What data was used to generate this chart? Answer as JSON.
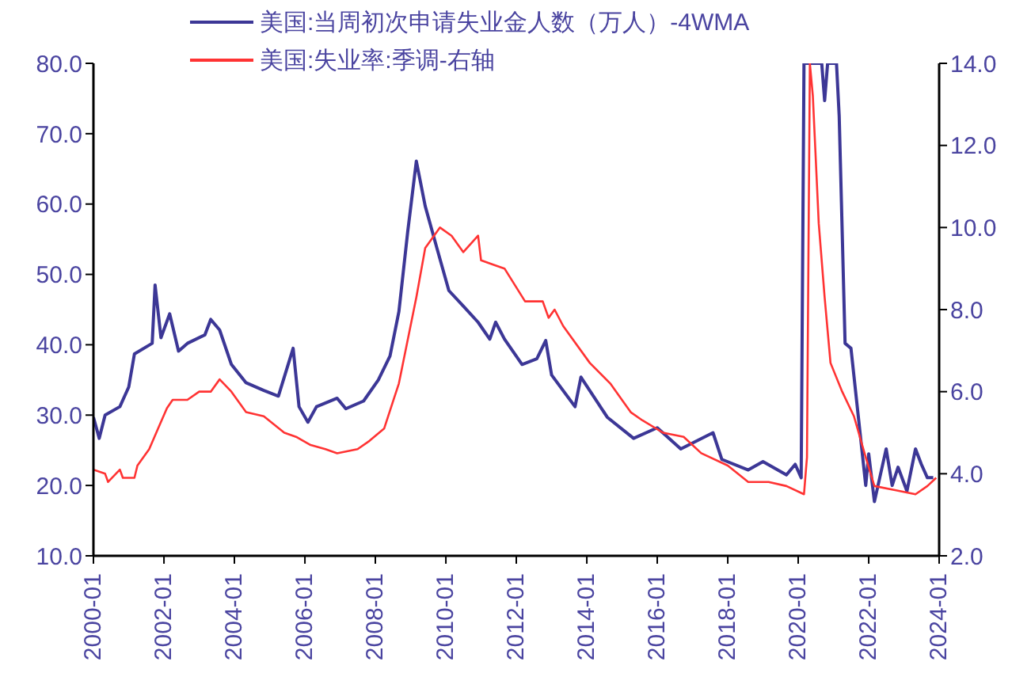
{
  "chart_data": {
    "type": "line",
    "legend": "top",
    "grid": false,
    "marker": "none",
    "line_style": "solid",
    "xlim": [
      "2000-01",
      "2024-01"
    ],
    "xticks": [
      {
        "value": "2000-01",
        "label": "2000-01"
      },
      {
        "value": "2002-01",
        "label": "2002-01"
      },
      {
        "value": "2004-01",
        "label": "2004-01"
      },
      {
        "value": "2006-01",
        "label": "2006-01"
      },
      {
        "value": "2008-01",
        "label": "2008-01"
      },
      {
        "value": "2010-01",
        "label": "2010-01"
      },
      {
        "value": "2012-01",
        "label": "2012-01"
      },
      {
        "value": "2014-01",
        "label": "2014-01"
      },
      {
        "value": "2016-01",
        "label": "2016-01"
      },
      {
        "value": "2018-01",
        "label": "2018-01"
      },
      {
        "value": "2020-01",
        "label": "2020-01"
      },
      {
        "value": "2022-01",
        "label": "2022-01"
      },
      {
        "value": "2024-01",
        "label": "2024-01"
      }
    ],
    "ylim": [
      10,
      80
    ],
    "yticks": [
      {
        "value": 10,
        "label": "10.0"
      },
      {
        "value": 20,
        "label": "20.0"
      },
      {
        "value": 30,
        "label": "30.0"
      },
      {
        "value": 40,
        "label": "40.0"
      },
      {
        "value": 50,
        "label": "50.0"
      },
      {
        "value": 60,
        "label": "60.0"
      },
      {
        "value": 70,
        "label": "70.0"
      },
      {
        "value": 80,
        "label": "80.0"
      }
    ],
    "y2lim": [
      2,
      14
    ],
    "y2ticks": [
      {
        "value": 2,
        "label": "2.0"
      },
      {
        "value": 4,
        "label": "4.0"
      },
      {
        "value": 6,
        "label": "6.0"
      },
      {
        "value": 8,
        "label": "8.0"
      },
      {
        "value": 10,
        "label": "10.0"
      },
      {
        "value": 12,
        "label": "12.0"
      },
      {
        "value": 14,
        "label": "14.0"
      }
    ],
    "series": [
      {
        "name": "美国:当周初次申请失业金人数（万人）-4WMA",
        "color": "#3c3796",
        "x": [
          "2000-01",
          "2000-03",
          "2000-05",
          "2000-10",
          "2001-01",
          "2001-03",
          "2001-09",
          "2001-10",
          "2001-12",
          "2002-03",
          "2002-06",
          "2002-09",
          "2003-03",
          "2003-05",
          "2003-08",
          "2003-12",
          "2004-05",
          "2004-11",
          "2005-04",
          "2005-09",
          "2005-11",
          "2006-02",
          "2006-05",
          "2006-12",
          "2007-03",
          "2007-09",
          "2008-02",
          "2008-06",
          "2008-09",
          "2008-12",
          "2009-03",
          "2009-06",
          "2009-10",
          "2010-02",
          "2010-07",
          "2010-12",
          "2011-04",
          "2011-06",
          "2011-09",
          "2012-03",
          "2012-08",
          "2012-11",
          "2013-01",
          "2013-09",
          "2013-11",
          "2014-08",
          "2015-05",
          "2016-01",
          "2016-09",
          "2017-08",
          "2017-11",
          "2018-08",
          "2019-01",
          "2019-09",
          "2019-12",
          "2020-02",
          "2020-03",
          "2020-09",
          "2020-10",
          "2020-11",
          "2021-02",
          "2021-03",
          "2021-05",
          "2021-07",
          "2021-12",
          "2022-01",
          "2022-03",
          "2022-07",
          "2022-09",
          "2022-11",
          "2023-02",
          "2023-05",
          "2023-07",
          "2023-09",
          "2023-11"
        ],
        "values": [
          29.7,
          26.7,
          30,
          31.2,
          34,
          38.7,
          40.2,
          48.5,
          41,
          44.4,
          39.1,
          40.2,
          41.4,
          43.6,
          42.1,
          37.2,
          34.6,
          33.5,
          32.7,
          39.5,
          31.2,
          29,
          31.2,
          32.4,
          30.9,
          32,
          35,
          38.4,
          44.7,
          56,
          66.1,
          59.7,
          53.7,
          47.7,
          45.5,
          43.2,
          40.8,
          43.2,
          40.8,
          37.2,
          38,
          40.6,
          35.7,
          31.2,
          35.4,
          29.7,
          26.7,
          28.2,
          25.2,
          27.5,
          23.7,
          22.2,
          23.4,
          21.5,
          23,
          21.1,
          80,
          80,
          74.7,
          80,
          80,
          72.5,
          40.2,
          39.5,
          20,
          24.5,
          17.7,
          25.2,
          20,
          22.6,
          19.2,
          25.2,
          23,
          21.1,
          21.1
        ]
      },
      {
        "name": "美国:失业率:季调-右轴",
        "color": "#ff3333",
        "axis": "y2",
        "x": [
          "2000-01",
          "2000-05",
          "2000-06",
          "2000-10",
          "2000-11",
          "2001-03",
          "2001-04",
          "2001-08",
          "2001-11",
          "2002-02",
          "2002-04",
          "2002-09",
          "2003-01",
          "2003-05",
          "2003-08",
          "2003-12",
          "2004-05",
          "2004-11",
          "2005-06",
          "2005-10",
          "2006-03",
          "2006-08",
          "2006-12",
          "2007-07",
          "2007-11",
          "2008-04",
          "2008-09",
          "2009-03",
          "2009-06",
          "2009-11",
          "2010-03",
          "2010-07",
          "2010-12",
          "2011-01",
          "2011-05",
          "2011-09",
          "2012-04",
          "2012-10",
          "2012-12",
          "2013-02",
          "2013-05",
          "2014-02",
          "2014-09",
          "2015-04",
          "2015-08",
          "2016-03",
          "2016-10",
          "2017-04",
          "2018-01",
          "2018-08",
          "2019-03",
          "2019-09",
          "2020-03",
          "2020-04",
          "2020-05",
          "2020-06",
          "2020-08",
          "2020-10",
          "2020-12",
          "2021-04",
          "2021-08",
          "2021-12",
          "2022-03",
          "2022-10",
          "2023-05",
          "2023-09",
          "2023-12"
        ],
        "values": [
          4.1,
          4.0,
          3.8,
          4.1,
          3.9,
          3.9,
          4.2,
          4.6,
          5.1,
          5.6,
          5.8,
          5.8,
          6.0,
          6.0,
          6.3,
          6.0,
          5.5,
          5.4,
          5.0,
          4.9,
          4.7,
          4.6,
          4.5,
          4.6,
          4.8,
          5.1,
          6.2,
          8.3,
          9.5,
          10.0,
          9.8,
          9.4,
          9.8,
          9.2,
          9.1,
          9.0,
          8.2,
          8.2,
          7.8,
          8.0,
          7.6,
          6.7,
          6.2,
          5.5,
          5.3,
          5.0,
          4.9,
          4.5,
          4.2,
          3.8,
          3.8,
          3.7,
          3.5,
          4.4,
          14,
          13.2,
          10.1,
          8.3,
          6.7,
          6.0,
          5.4,
          4.4,
          3.7,
          3.6,
          3.5,
          3.7,
          3.9
        ]
      }
    ]
  }
}
